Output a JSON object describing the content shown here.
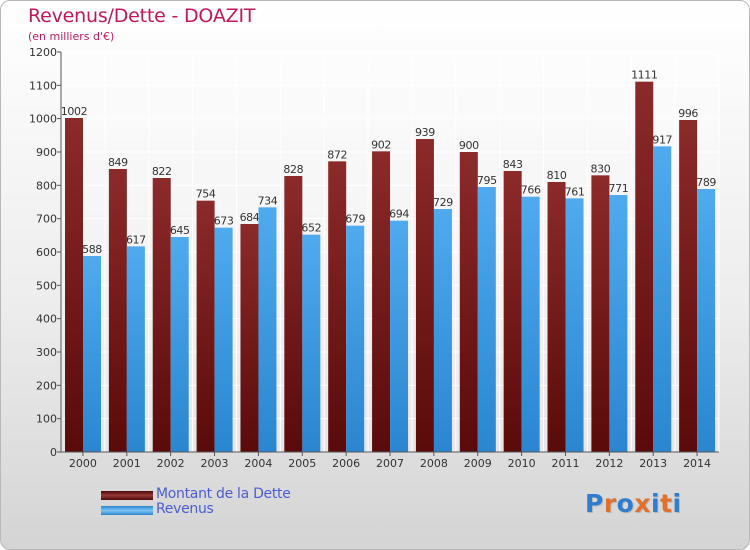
{
  "header": {
    "title": "Revenus/Dette - DOAZIT",
    "subtitle": "(en milliers d'€)"
  },
  "colors": {
    "dette": "#7a1818",
    "revenus": "#3b9de6",
    "title": "#c2185b",
    "legend_text": "#4c5cd6"
  },
  "legend": {
    "items": [
      {
        "label": "Montant de la Dette",
        "color": "#7a1818"
      },
      {
        "label": "Revenus",
        "color": "#3b9de6"
      }
    ]
  },
  "logo": {
    "text": "Proxiti",
    "letter_colors": [
      "#2e7dd1",
      "#e0702a",
      "#2e7dd1",
      "#e0702a",
      "#2e7dd1",
      "#e0702a",
      "#2e7dd1"
    ]
  },
  "chart_data": {
    "type": "bar",
    "title": "Revenus/Dette - DOAZIT",
    "subtitle": "(en milliers d'€)",
    "categories": [
      "2000",
      "2001",
      "2002",
      "2003",
      "2004",
      "2005",
      "2006",
      "2007",
      "2008",
      "2009",
      "2010",
      "2011",
      "2012",
      "2013",
      "2014"
    ],
    "series": [
      {
        "name": "Montant de la Dette",
        "color": "#7a1818",
        "values": [
          1002,
          849,
          822,
          754,
          684,
          828,
          872,
          902,
          939,
          900,
          843,
          810,
          830,
          1111,
          996
        ]
      },
      {
        "name": "Revenus",
        "color": "#3b9de6",
        "values": [
          588,
          617,
          645,
          673,
          734,
          652,
          679,
          694,
          729,
          795,
          766,
          761,
          771,
          917,
          789
        ]
      }
    ],
    "ylim": [
      0,
      1200
    ],
    "yticks": [
      0,
      100,
      200,
      300,
      400,
      500,
      600,
      700,
      800,
      900,
      1000,
      1100,
      1200
    ],
    "grid": true,
    "legend_position": "bottom-left"
  }
}
